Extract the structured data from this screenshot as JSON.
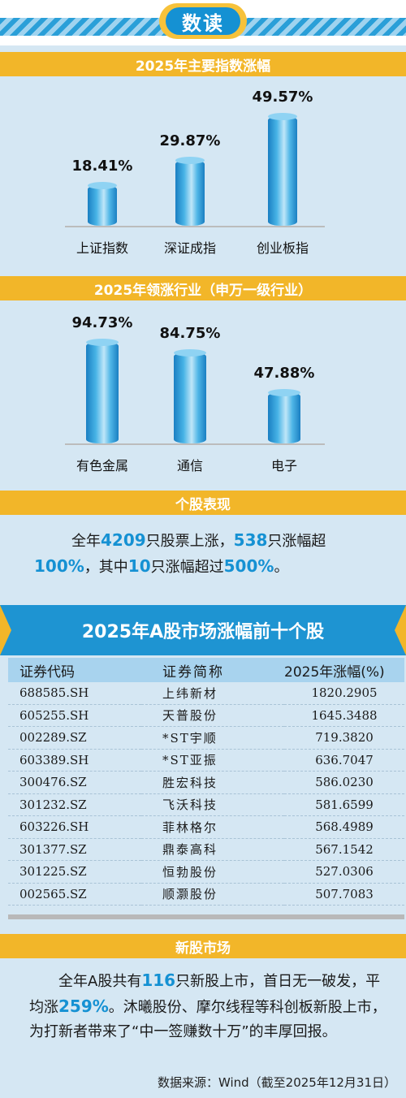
{
  "header": {
    "title": "数读"
  },
  "index_section": {
    "title": "2025年主要指数涨幅"
  },
  "industry_section": {
    "title": "2025年领涨行业（申万一级行业）"
  },
  "chart_data": [
    {
      "type": "bar",
      "title": "2025年主要指数涨幅",
      "categories": [
        "上证指数",
        "深证成指",
        "创业板指"
      ],
      "values": [
        18.41,
        29.87,
        49.57
      ],
      "labels": [
        "18.41%",
        "29.87%",
        "49.57%"
      ]
    },
    {
      "type": "bar",
      "title": "2025年领涨行业（申万一级行业）",
      "categories": [
        "有色金属",
        "通信",
        "电子"
      ],
      "values": [
        94.73,
        84.75,
        47.88
      ],
      "labels": [
        "94.73%",
        "84.75%",
        "47.88%"
      ]
    }
  ],
  "stock_section": {
    "title": "个股表现",
    "t1": "全年",
    "n1": "4209",
    "t2": "只股票上涨，",
    "n2": "538",
    "t3": "只涨幅超",
    "n3": "100%",
    "t4": "，其中",
    "n4": "10",
    "t5": "只涨幅超过",
    "n5": "500%",
    "t6": "。"
  },
  "top10": {
    "title": "2025年A股市场涨幅前十个股",
    "headers": [
      "证券代码",
      "证券简称",
      "2025年涨幅(%)"
    ],
    "rows": [
      [
        "688585.SH",
        "上纬新材",
        "1820.2905"
      ],
      [
        "605255.SH",
        "天普股份",
        "1645.3488"
      ],
      [
        "002289.SZ",
        "*ST宇顺",
        "719.3820"
      ],
      [
        "603389.SH",
        "*ST亚振",
        "636.7047"
      ],
      [
        "300476.SZ",
        "胜宏科技",
        "586.0230"
      ],
      [
        "301232.SZ",
        "飞沃科技",
        "581.6599"
      ],
      [
        "603226.SH",
        "菲林格尔",
        "568.4989"
      ],
      [
        "301377.SZ",
        "鼎泰高科",
        "567.1542"
      ],
      [
        "301225.SZ",
        "恒勃股份",
        "527.0306"
      ],
      [
        "002565.SZ",
        "顺灏股份",
        "507.7083"
      ]
    ]
  },
  "ipo_section": {
    "title": "新股市场",
    "t1": "全年A股共有",
    "n1": "116",
    "t2": "只新股上市，首日无一破发，平均涨",
    "n2": "259%",
    "t3": "。沐曦股份、摩尔线程等科创板新股上市，为打新者带来了“中一签赚数十万”的丰厚回报。"
  },
  "footer": {
    "source": "数据来源：Wind（截至2025年12月31日）"
  }
}
